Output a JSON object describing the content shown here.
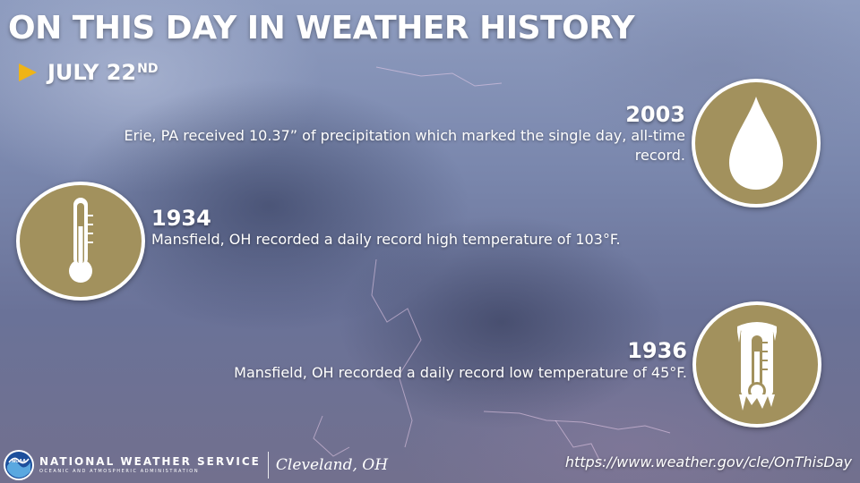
{
  "header": {
    "title": "ON THIS DAY IN WEATHER HISTORY",
    "date_main": "JULY 22",
    "date_suffix": "ND"
  },
  "events": [
    {
      "year": "2003",
      "description": "Erie, PA received 10.37” of precipitation which marked the single day, all-time record.",
      "icon": "raindrop-icon"
    },
    {
      "year": "1934",
      "description": "Mansfield, OH recorded a daily record high temperature of 103°F.",
      "icon": "thermometer-hot-icon"
    },
    {
      "year": "1936",
      "description": "Mansfield, OH recorded a daily record low temperature of 45°F.",
      "icon": "thermometer-frozen-icon"
    }
  ],
  "footer": {
    "agency_name": "NATIONAL WEATHER SERVICE",
    "agency_sub": "OCEANIC AND ATMOSPHERIC ADMINISTRATION",
    "logo_text": "NOAA",
    "office": "Cleveland, OH",
    "url": "https://www.weather.gov/cle/OnThisDay"
  },
  "colors": {
    "accent_gold": "#a2915d",
    "arrow_yellow": "#efb417",
    "sky": "#7a87ad"
  }
}
